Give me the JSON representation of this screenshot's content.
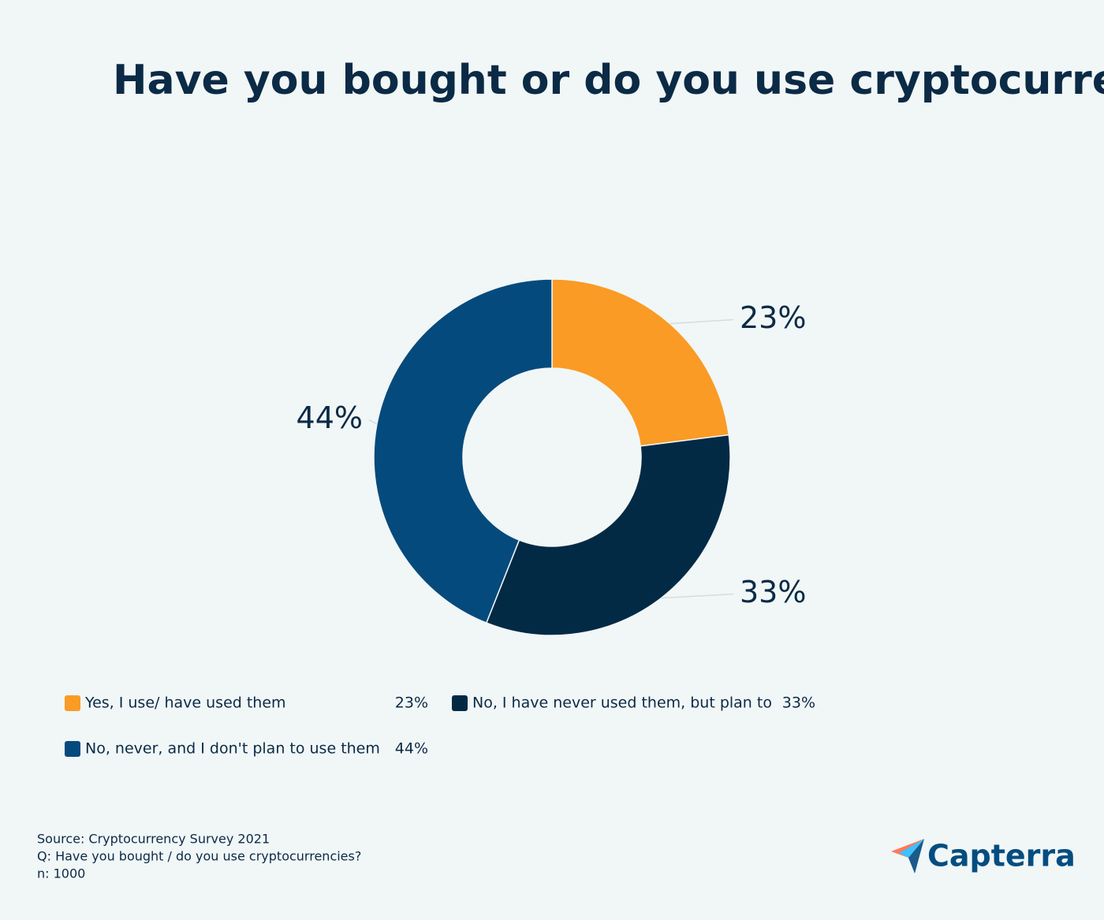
{
  "chart_data": {
    "type": "donut",
    "title": "Have you bought or do you use cryptocurrencies?",
    "categories": [
      "Yes, I use/ have used them",
      "No, I have never used them, but plan to",
      "No, never, and I don't plan to use them"
    ],
    "values": [
      23,
      33,
      44
    ],
    "value_labels": [
      "23%",
      "33%",
      "44%"
    ],
    "colors": [
      "#f99b25",
      "#022a45",
      "#054a7c"
    ]
  },
  "footer": [
    "Source: Cryptocurrency Survey 2021",
    "Q: Have you bought / do you use cryptocurrencies?",
    "n: 1000"
  ],
  "logo": "Capterra"
}
